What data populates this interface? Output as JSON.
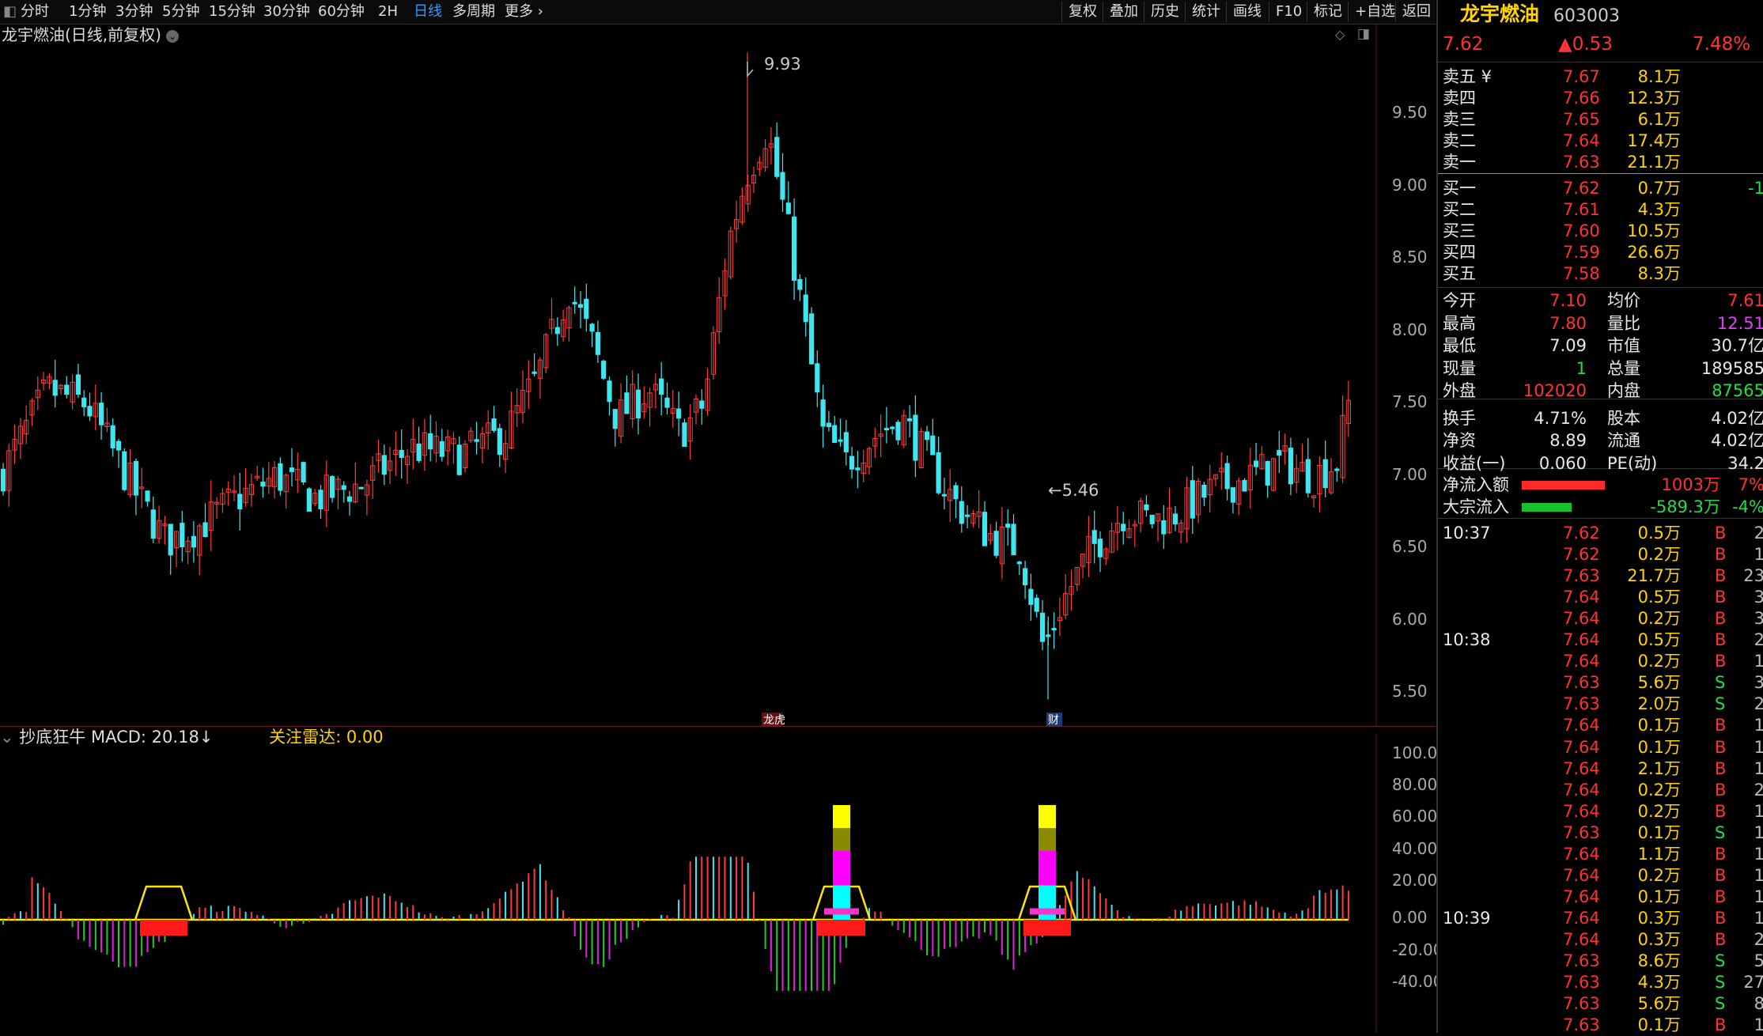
{
  "toolbar": {
    "periods": [
      "分时",
      "1分钟",
      "3分钟",
      "5分钟",
      "15分钟",
      "30分钟",
      "60分钟",
      "2H",
      "日线",
      "多周期",
      "更多 ›"
    ],
    "active_period": "日线",
    "tools": [
      "复权",
      "叠加",
      "历史",
      "统计",
      "画线",
      "F10",
      "标记",
      "+自选",
      "返回"
    ]
  },
  "stock": {
    "name": "龙宇燃油",
    "code": "603003",
    "chart_label": "龙宇燃油(日线,前复权)",
    "price": "7.62",
    "change": "▲0.53",
    "pct": "7.48%"
  },
  "main_chart": {
    "y_ticks": [
      "9.50",
      "9.00",
      "8.50",
      "8.00",
      "7.50",
      "7.00",
      "6.50",
      "6.00",
      "5.50"
    ],
    "high_label": "9.93",
    "low_label": "←5.46",
    "marker_1": "龙虎",
    "marker_2": "财"
  },
  "indicator": {
    "name": "抄底狂牛",
    "macd_label": "MACD: 20.18↓",
    "radar_label": "关注雷达: 0.00",
    "y_ticks": [
      "100.0",
      "80.00",
      "60.00",
      "40.00",
      "20.00",
      "0.00",
      "-20.00",
      "-40.00"
    ]
  },
  "order_book": {
    "asks": [
      {
        "label": "卖五 ¥",
        "price": "7.67",
        "vol": "8.1万"
      },
      {
        "label": "卖四",
        "price": "7.66",
        "vol": "12.3万"
      },
      {
        "label": "卖三",
        "price": "7.65",
        "vol": "6.1万"
      },
      {
        "label": "卖二",
        "price": "7.64",
        "vol": "17.4万"
      },
      {
        "label": "卖一",
        "price": "7.63",
        "vol": "21.1万"
      }
    ],
    "bids": [
      {
        "label": "买一",
        "price": "7.62",
        "vol": "0.7万",
        "extra": "-1"
      },
      {
        "label": "买二",
        "price": "7.61",
        "vol": "4.3万",
        "extra": ""
      },
      {
        "label": "买三",
        "price": "7.60",
        "vol": "10.5万",
        "extra": ""
      },
      {
        "label": "买四",
        "price": "7.59",
        "vol": "26.6万",
        "extra": ""
      },
      {
        "label": "买五",
        "price": "7.58",
        "vol": "8.3万",
        "extra": ""
      }
    ]
  },
  "stats": {
    "open_l": "今开",
    "open": "7.10",
    "avg_l": "均价",
    "avg": "7.61",
    "high_l": "最高",
    "high": "7.80",
    "vr_l": "量比",
    "vr": "12.51",
    "low_l": "最低",
    "low": "7.09",
    "mcap_l": "市值",
    "mcap": "30.7亿",
    "cur_l": "现量",
    "cur": "1",
    "tvol_l": "总量",
    "tvol": "189585",
    "out_l": "外盘",
    "out": "102020",
    "in_l": "内盘",
    "in": "87565",
    "turn_l": "换手",
    "turn": "4.71%",
    "cap_l": "股本",
    "cap": "4.02亿",
    "net_l": "净资",
    "net": "8.89",
    "float_l": "流通",
    "float": "4.02亿",
    "eps_l": "收益(一)",
    "eps": "0.060",
    "pe_l": "PE(动)",
    "pe": "34.2"
  },
  "flows": {
    "net_l": "净流入额",
    "net": "1003万",
    "net_pct": "7%",
    "block_l": "大宗流入",
    "block": "-589.3万",
    "block_pct": "-4%",
    "net_ratio": 0.75,
    "block_ratio": 0.45
  },
  "trades": [
    {
      "time": "10:37",
      "price": "7.62",
      "vol": "0.5万",
      "bs": "B",
      "n": "2"
    },
    {
      "time": "",
      "price": "7.62",
      "vol": "0.2万",
      "bs": "B",
      "n": "1"
    },
    {
      "time": "",
      "price": "7.63",
      "vol": "21.7万",
      "bs": "B",
      "n": "23"
    },
    {
      "time": "",
      "price": "7.64",
      "vol": "0.5万",
      "bs": "B",
      "n": "3"
    },
    {
      "time": "",
      "price": "7.64",
      "vol": "0.2万",
      "bs": "B",
      "n": "3"
    },
    {
      "time": "10:38",
      "price": "7.64",
      "vol": "0.5万",
      "bs": "B",
      "n": "2"
    },
    {
      "time": "",
      "price": "7.64",
      "vol": "0.2万",
      "bs": "B",
      "n": "1"
    },
    {
      "time": "",
      "price": "7.63",
      "vol": "5.6万",
      "bs": "S",
      "n": "3"
    },
    {
      "time": "",
      "price": "7.63",
      "vol": "2.0万",
      "bs": "S",
      "n": "2"
    },
    {
      "time": "",
      "price": "7.64",
      "vol": "0.1万",
      "bs": "B",
      "n": "1"
    },
    {
      "time": "",
      "price": "7.64",
      "vol": "0.1万",
      "bs": "B",
      "n": "1"
    },
    {
      "time": "",
      "price": "7.64",
      "vol": "2.1万",
      "bs": "B",
      "n": "1"
    },
    {
      "time": "",
      "price": "7.64",
      "vol": "0.2万",
      "bs": "B",
      "n": "2"
    },
    {
      "time": "",
      "price": "7.64",
      "vol": "0.2万",
      "bs": "B",
      "n": "1"
    },
    {
      "time": "",
      "price": "7.63",
      "vol": "0.1万",
      "bs": "S",
      "n": "1"
    },
    {
      "time": "",
      "price": "7.64",
      "vol": "1.1万",
      "bs": "B",
      "n": "1"
    },
    {
      "time": "",
      "price": "7.64",
      "vol": "0.2万",
      "bs": "B",
      "n": "1"
    },
    {
      "time": "",
      "price": "7.64",
      "vol": "0.1万",
      "bs": "B",
      "n": "1"
    },
    {
      "time": "10:39",
      "price": "7.64",
      "vol": "0.3万",
      "bs": "B",
      "n": "1"
    },
    {
      "time": "",
      "price": "7.64",
      "vol": "0.3万",
      "bs": "B",
      "n": "2"
    },
    {
      "time": "",
      "price": "7.63",
      "vol": "8.6万",
      "bs": "S",
      "n": "5"
    },
    {
      "time": "",
      "price": "7.63",
      "vol": "4.3万",
      "bs": "S",
      "n": "27"
    },
    {
      "time": "",
      "price": "7.63",
      "vol": "5.6万",
      "bs": "S",
      "n": "8"
    },
    {
      "time": "",
      "price": "7.63",
      "vol": "0.1万",
      "bs": "B",
      "n": "1"
    }
  ]
}
